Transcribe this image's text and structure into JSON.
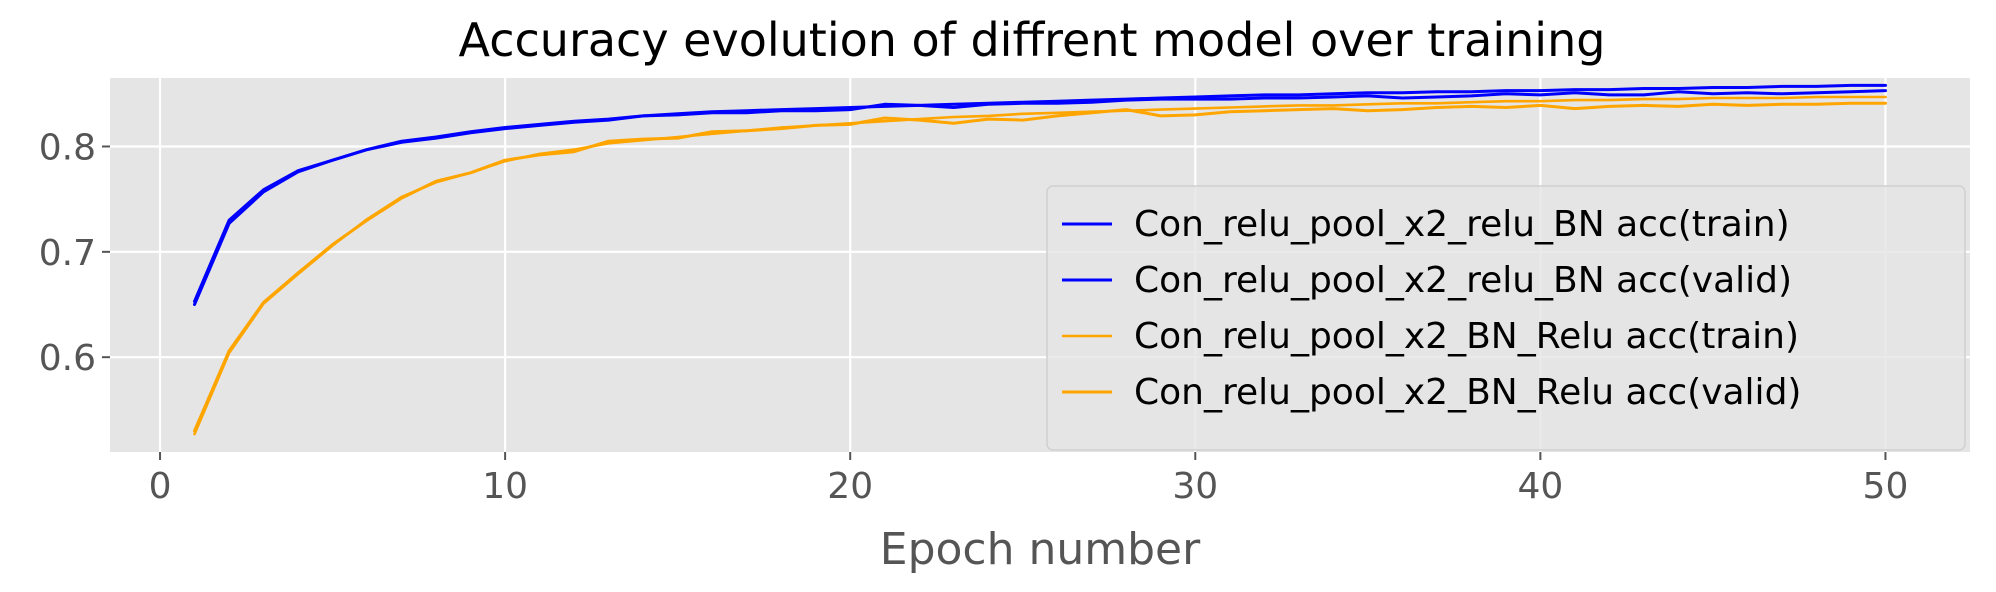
{
  "chart_data": {
    "type": "line",
    "title": "Accuracy evolution of diffrent model over training",
    "xlabel": "Epoch number",
    "ylabel": "",
    "xlim": [
      -1.45,
      52.45
    ],
    "ylim": [
      0.51,
      0.865
    ],
    "xticks": [
      0,
      10,
      20,
      30,
      40,
      50
    ],
    "xtick_labels": [
      "0",
      "10",
      "20",
      "30",
      "40",
      "50"
    ],
    "yticks": [
      0.6,
      0.7,
      0.8
    ],
    "ytick_labels": [
      "0.6",
      "0.7",
      "0.8"
    ],
    "grid": true,
    "legend_position": "lower right",
    "x": [
      1,
      2,
      3,
      4,
      5,
      6,
      7,
      8,
      9,
      10,
      11,
      12,
      13,
      14,
      15,
      16,
      17,
      18,
      19,
      20,
      21,
      22,
      23,
      24,
      25,
      26,
      27,
      28,
      29,
      30,
      31,
      32,
      33,
      34,
      35,
      36,
      37,
      38,
      39,
      40,
      41,
      42,
      43,
      44,
      45,
      46,
      47,
      48,
      49,
      50
    ],
    "series": [
      {
        "name": "Con_relu_pool_x2_relu_BN acc(train)",
        "color": "#0000ff",
        "values": [
          0.653,
          0.73,
          0.759,
          0.777,
          0.787,
          0.797,
          0.805,
          0.809,
          0.814,
          0.818,
          0.821,
          0.824,
          0.826,
          0.829,
          0.831,
          0.833,
          0.834,
          0.835,
          0.836,
          0.837,
          0.838,
          0.839,
          0.84,
          0.841,
          0.842,
          0.843,
          0.844,
          0.845,
          0.846,
          0.847,
          0.848,
          0.849,
          0.849,
          0.85,
          0.851,
          0.851,
          0.852,
          0.852,
          0.853,
          0.853,
          0.854,
          0.854,
          0.855,
          0.855,
          0.856,
          0.856,
          0.857,
          0.857,
          0.858,
          0.858
        ]
      },
      {
        "name": "Con_relu_pool_x2_relu_BN acc(valid)",
        "color": "#0000ff",
        "values": [
          0.65,
          0.727,
          0.757,
          0.776,
          0.787,
          0.797,
          0.804,
          0.808,
          0.813,
          0.817,
          0.82,
          0.823,
          0.825,
          0.829,
          0.83,
          0.832,
          0.832,
          0.834,
          0.834,
          0.835,
          0.84,
          0.839,
          0.837,
          0.84,
          0.841,
          0.841,
          0.842,
          0.844,
          0.845,
          0.845,
          0.845,
          0.846,
          0.846,
          0.847,
          0.848,
          0.846,
          0.847,
          0.848,
          0.85,
          0.849,
          0.851,
          0.849,
          0.849,
          0.852,
          0.85,
          0.851,
          0.85,
          0.851,
          0.852,
          0.853
        ]
      },
      {
        "name": "Con_relu_pool_x2_BN_Relu acc(train)",
        "color": "#ffa500",
        "values": [
          0.527,
          0.604,
          0.651,
          0.679,
          0.706,
          0.731,
          0.752,
          0.766,
          0.775,
          0.786,
          0.793,
          0.797,
          0.803,
          0.806,
          0.809,
          0.812,
          0.815,
          0.818,
          0.82,
          0.822,
          0.824,
          0.826,
          0.828,
          0.829,
          0.831,
          0.832,
          0.833,
          0.834,
          0.835,
          0.836,
          0.837,
          0.838,
          0.839,
          0.839,
          0.84,
          0.841,
          0.841,
          0.842,
          0.843,
          0.843,
          0.844,
          0.844,
          0.845,
          0.845,
          0.846,
          0.846,
          0.846,
          0.847,
          0.847,
          0.847
        ]
      },
      {
        "name": "Con_relu_pool_x2_BN_Relu acc(valid)",
        "color": "#ffa500",
        "values": [
          0.53,
          0.606,
          0.652,
          0.68,
          0.707,
          0.73,
          0.751,
          0.767,
          0.775,
          0.787,
          0.792,
          0.795,
          0.805,
          0.807,
          0.808,
          0.814,
          0.815,
          0.817,
          0.82,
          0.821,
          0.827,
          0.825,
          0.822,
          0.826,
          0.825,
          0.829,
          0.832,
          0.835,
          0.829,
          0.83,
          0.833,
          0.834,
          0.835,
          0.836,
          0.834,
          0.835,
          0.837,
          0.838,
          0.837,
          0.839,
          0.836,
          0.838,
          0.839,
          0.838,
          0.84,
          0.839,
          0.84,
          0.84,
          0.841,
          0.841
        ]
      }
    ]
  }
}
